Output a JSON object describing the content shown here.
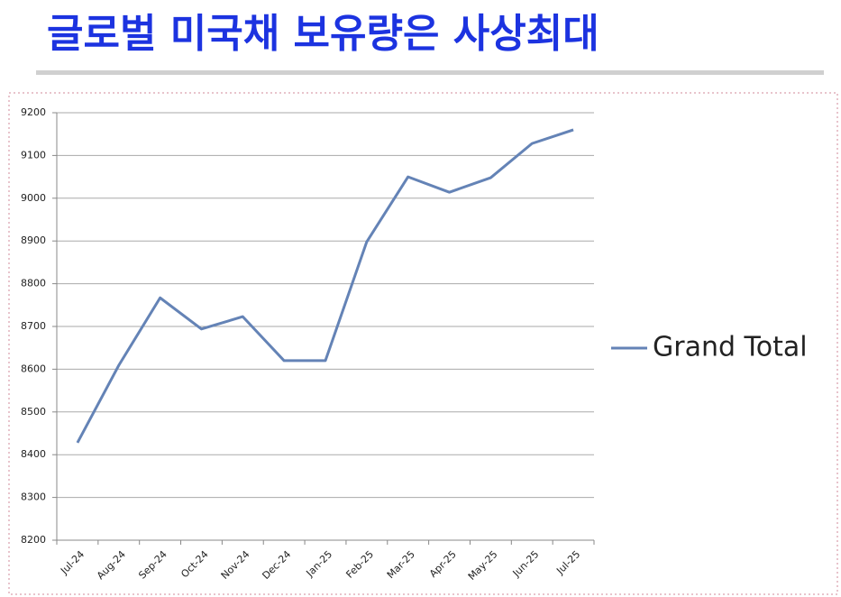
{
  "chart_data": {
    "type": "line",
    "title": "글로벌 미국채 보유량은 사상최대",
    "categories": [
      "Jul-24",
      "Aug-24",
      "Sep-24",
      "Oct-24",
      "Nov-24",
      "Dec-24",
      "Jan-25",
      "Feb-25",
      "Mar-25",
      "Apr-25",
      "May-25",
      "Jun-25",
      "Jul-25"
    ],
    "series": [
      {
        "name": "Grand Total",
        "color": "#6483b6",
        "values": [
          8428,
          8609,
          8767,
          8694,
          8723,
          8620,
          8620,
          8898,
          9050,
          9014,
          9048,
          9128,
          9160
        ]
      }
    ],
    "ylim": [
      8200,
      9200
    ],
    "yticks": [
      8200,
      8300,
      8400,
      8500,
      8600,
      8700,
      8800,
      8900,
      9000,
      9100,
      9200
    ],
    "grid": true,
    "legend": "right"
  }
}
